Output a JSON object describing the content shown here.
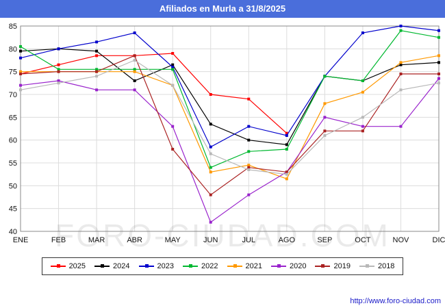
{
  "header": {
    "title": "Afiliados en Murla a 31/8/2025",
    "bg_color": "#4a6edb",
    "text_color": "#ffffff"
  },
  "watermark": "FORO-CIUDAD.COM",
  "footer": {
    "url": "http://www.foro-ciudad.com",
    "link_color": "#1a1ac8"
  },
  "chart_data": {
    "type": "line",
    "title": "Afiliados en Murla a 31/8/2025",
    "categories": [
      "ENE",
      "FEB",
      "MAR",
      "ABR",
      "MAY",
      "JUN",
      "JUL",
      "AGO",
      "SEP",
      "OCT",
      "NOV",
      "DIC"
    ],
    "ylim": [
      40,
      85
    ],
    "ytick_step": 5,
    "grid": true,
    "legend_position": "bottom",
    "grid_color": "#dcdcdc",
    "border_color": "#888888",
    "series": [
      {
        "name": "2025",
        "color": "#ff0000",
        "values": [
          74.5,
          76.5,
          78.5,
          78.5,
          79,
          70,
          69,
          61.5,
          null,
          null,
          null,
          null
        ]
      },
      {
        "name": "2024",
        "color": "#000000",
        "values": [
          79.5,
          80,
          79.5,
          73,
          76.5,
          63.5,
          60,
          59,
          74,
          73,
          76.5,
          77
        ]
      },
      {
        "name": "2023",
        "color": "#0000cc",
        "values": [
          78,
          80,
          81.5,
          83.5,
          76,
          58.5,
          63,
          61,
          74,
          83.5,
          85,
          84
        ]
      },
      {
        "name": "2022",
        "color": "#00b830",
        "values": [
          80.5,
          75.5,
          75.5,
          75.5,
          75.5,
          54,
          57.5,
          58,
          74,
          73,
          84,
          82.5
        ]
      },
      {
        "name": "2021",
        "color": "#ff9900",
        "values": [
          75,
          75,
          75,
          75,
          72,
          53,
          54.5,
          51.5,
          68,
          70.5,
          77,
          78.5
        ]
      },
      {
        "name": "2020",
        "color": "#9922cc",
        "values": [
          72,
          73,
          71,
          71,
          63,
          42,
          48,
          53,
          65,
          63,
          63,
          73.5
        ]
      },
      {
        "name": "2019",
        "color": "#aa2222",
        "values": [
          74.5,
          75,
          75,
          78.5,
          58,
          48,
          54,
          53,
          62,
          62,
          74.5,
          74.5
        ]
      },
      {
        "name": "2018",
        "color": "#b8b8b8",
        "values": [
          71,
          72.5,
          74,
          77.5,
          72,
          57,
          53.5,
          52.5,
          61,
          65,
          71,
          72.5
        ]
      }
    ]
  }
}
